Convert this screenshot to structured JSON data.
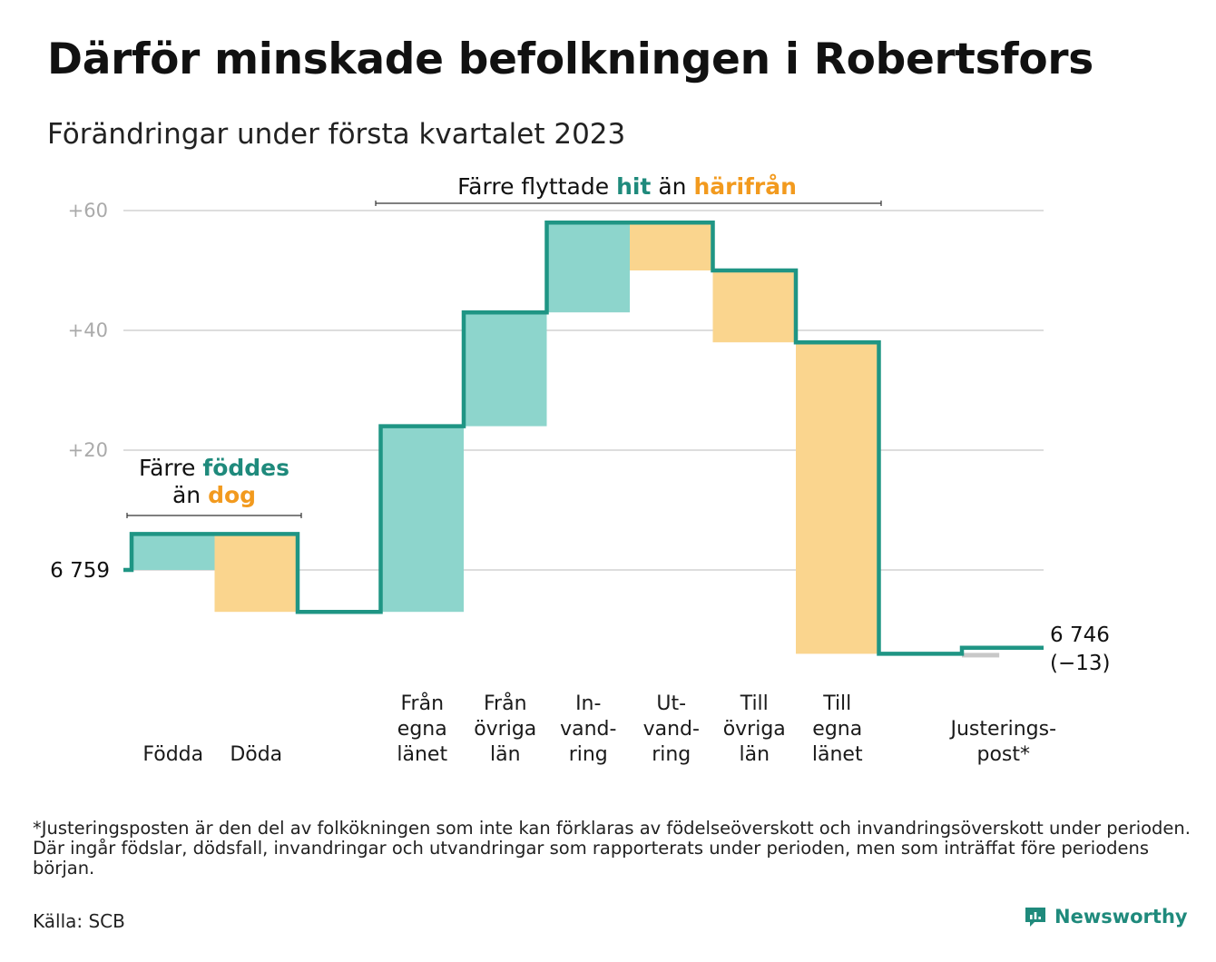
{
  "title": "Därför minskade befolkningen i Robertsfors",
  "subtitle": "Förändringar under första kvartalet 2023",
  "colors": {
    "inflow": "#8dd5cc",
    "outflow": "#fad58e",
    "line": "#1f9584",
    "hit_text": "#1f8a7c",
    "out_text": "#f29a1e",
    "adjust": "#c8c8c8",
    "grid": "#dddddd"
  },
  "chart_data": {
    "type": "waterfall",
    "start": {
      "label": "6 759",
      "value": 6759
    },
    "end": {
      "label": "6 746",
      "change_label": "(−13)",
      "value": 6746
    },
    "y_axis": {
      "ticks": [
        "+20",
        "+40",
        "+60"
      ],
      "tick_values": [
        20,
        40,
        60
      ],
      "ylim": [
        -15,
        63
      ]
    },
    "steps": [
      {
        "label": [
          "Födda"
        ],
        "change": 6,
        "kind": "inflow"
      },
      {
        "label": [
          "Döda"
        ],
        "change": -13,
        "kind": "outflow"
      },
      {
        "label": [],
        "change": 0,
        "kind": "gap"
      },
      {
        "label": [
          "Från",
          "egna",
          "länet"
        ],
        "change": 31,
        "kind": "inflow"
      },
      {
        "label": [
          "Från",
          "övriga",
          "län"
        ],
        "change": 19,
        "kind": "inflow"
      },
      {
        "label": [
          "In-",
          "vand-",
          "ring"
        ],
        "change": 15,
        "kind": "inflow"
      },
      {
        "label": [
          "Ut-",
          "vand-",
          "ring"
        ],
        "change": -8,
        "kind": "outflow"
      },
      {
        "label": [
          "Till",
          "övriga",
          "län"
        ],
        "change": -12,
        "kind": "outflow"
      },
      {
        "label": [
          "Till",
          "egna",
          "länet"
        ],
        "change": -52,
        "kind": "outflow"
      },
      {
        "label": [],
        "change": 0,
        "kind": "gap"
      },
      {
        "label": [
          "Justerings-",
          "post*"
        ],
        "change": 1,
        "kind": "adjust"
      }
    ],
    "annotations": [
      {
        "group": "births",
        "parts": [
          {
            "text": "Färre ",
            "style": "plain"
          },
          {
            "text": "föddes",
            "style": "hit"
          },
          {
            "text": "än ",
            "style": "plain"
          },
          {
            "text": "dog",
            "style": "out"
          }
        ]
      },
      {
        "group": "moves",
        "parts": [
          {
            "text": "Färre flyttade ",
            "style": "plain"
          },
          {
            "text": "hit",
            "style": "hit"
          },
          {
            "text": " än ",
            "style": "plain"
          },
          {
            "text": "härifrån",
            "style": "out"
          }
        ]
      }
    ]
  },
  "footnote": "*Justeringsposten är den del av folkökningen som inte kan förklaras av födelseöverskott och invandringsöverskott under perioden. Där ingår födslar, dödsfall, invandringar och utvandringar som rapporterats under perioden, men som inträffat före periodens början.",
  "source": "Källa: SCB",
  "brand": {
    "name": "Newsworthy",
    "icon": "newsworthy-logo-icon"
  }
}
